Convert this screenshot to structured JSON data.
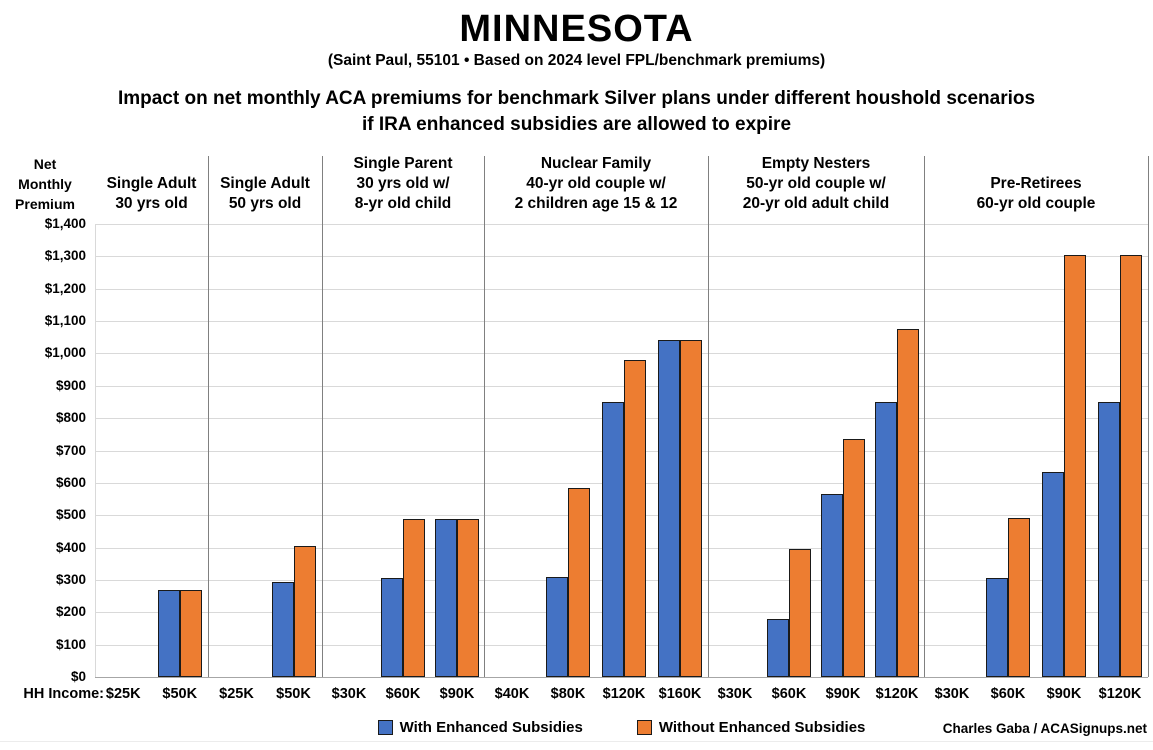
{
  "header": {
    "title": "MINNESOTA",
    "subtitle": "(Saint Paul, 55101 • Based on 2024 level FPL/benchmark premiums)",
    "description_line1": "Impact on net monthly ACA premiums for benchmark Silver plans under different houshold scenarios",
    "description_line2": "if IRA enhanced subsidies are allowed to expire"
  },
  "axis": {
    "y_title_lines": [
      "Net",
      "Monthly",
      "Premium"
    ],
    "x_label": "HH Income:"
  },
  "legend": {
    "items": [
      {
        "label": "With Enhanced Subsidies",
        "color": "#4472C4"
      },
      {
        "label": "Without Enhanced Subsidies",
        "color": "#ED7D31"
      }
    ]
  },
  "credit": "Charles Gaba / ACASignups.net",
  "chart_data": {
    "type": "bar",
    "title": "MINNESOTA",
    "subtitle": "(Saint Paul, 55101 • Based on 2024 level FPL/benchmark premiums)",
    "ylabel": "Net Monthly Premium",
    "xlabel": "HH Income",
    "ylim": [
      0,
      1400
    ],
    "ytick_step": 100,
    "grid": true,
    "legend_position": "bottom",
    "series_names": [
      "With Enhanced Subsidies",
      "Without Enhanced Subsidies"
    ],
    "colors": {
      "with_enhanced": "#4472C4",
      "without_enhanced": "#ED7D31"
    },
    "groups": [
      {
        "label_lines": [
          "Single Adult",
          "30 yrs old"
        ],
        "incomes": [
          "$25K",
          "$50K"
        ],
        "with_enhanced": [
          0,
          270
        ],
        "without_enhanced": [
          0,
          270
        ]
      },
      {
        "label_lines": [
          "Single Adult",
          "50 yrs old"
        ],
        "incomes": [
          "$25K",
          "$50K"
        ],
        "with_enhanced": [
          0,
          295
        ],
        "without_enhanced": [
          0,
          405
        ]
      },
      {
        "label_lines": [
          "Single Parent",
          "30 yrs old w/",
          "8-yr old child"
        ],
        "incomes": [
          "$30K",
          "$60K",
          "$90K"
        ],
        "with_enhanced": [
          0,
          305,
          487
        ],
        "without_enhanced": [
          0,
          487,
          487
        ]
      },
      {
        "label_lines": [
          "Nuclear Family",
          "40-yr old couple w/",
          "2 children age 15 & 12"
        ],
        "incomes": [
          "$40K",
          "$80K",
          "$120K",
          "$160K"
        ],
        "with_enhanced": [
          0,
          310,
          850,
          1043
        ],
        "without_enhanced": [
          0,
          585,
          980,
          1043
        ]
      },
      {
        "label_lines": [
          "Empty Nesters",
          "50-yr old couple w/",
          "20-yr old adult child"
        ],
        "incomes": [
          "$30K",
          "$60K",
          "$90K",
          "$120K"
        ],
        "with_enhanced": [
          0,
          180,
          565,
          850
        ],
        "without_enhanced": [
          0,
          395,
          735,
          1075
        ]
      },
      {
        "label_lines": [
          "Pre-Retirees",
          "60-yr old couple"
        ],
        "incomes": [
          "$30K",
          "$60K",
          "$90K",
          "$120K"
        ],
        "with_enhanced": [
          0,
          305,
          635,
          850
        ],
        "without_enhanced": [
          0,
          490,
          1305,
          1305
        ]
      }
    ]
  }
}
